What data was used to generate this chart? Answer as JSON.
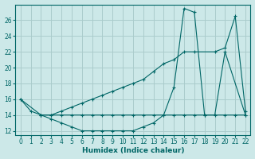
{
  "xlabel": "Humidex (Indice chaleur)",
  "bg_color": "#cce8e8",
  "grid_color": "#aacccc",
  "line_color": "#006666",
  "xlim": [
    -0.5,
    22.5
  ],
  "ylim": [
    11.5,
    28
  ],
  "yticks": [
    12,
    14,
    16,
    18,
    20,
    22,
    24,
    26
  ],
  "xticks": [
    0,
    1,
    2,
    3,
    4,
    5,
    6,
    7,
    8,
    9,
    10,
    11,
    12,
    13,
    14,
    15,
    16,
    17,
    18,
    19,
    20,
    21,
    22
  ],
  "line1_x": [
    0,
    2,
    3,
    4,
    5,
    6,
    7,
    8,
    9,
    10,
    11,
    12,
    13,
    14,
    15,
    16,
    17,
    18,
    19,
    20,
    22
  ],
  "line1_y": [
    16,
    14,
    14,
    14,
    14,
    14,
    14,
    14,
    14,
    14,
    14,
    14,
    14,
    14,
    14,
    14,
    14,
    14,
    14,
    22,
    14
  ],
  "line2_x": [
    0,
    1,
    2,
    3,
    4,
    5,
    6,
    7,
    8,
    9,
    10,
    11,
    12,
    13,
    14,
    15,
    16,
    17,
    18,
    20,
    21,
    22
  ],
  "line2_y": [
    16,
    14.5,
    14,
    13.5,
    13,
    12.5,
    12,
    12,
    12,
    12,
    12,
    12,
    12.5,
    13,
    14,
    17.5,
    27.5,
    27,
    14,
    14,
    14,
    14
  ],
  "line3_x": [
    2,
    3,
    4,
    5,
    6,
    7,
    8,
    9,
    10,
    11,
    12,
    13,
    14,
    15,
    16,
    17,
    19,
    20,
    21,
    22
  ],
  "line3_y": [
    14,
    14,
    14.5,
    15,
    15.5,
    16,
    16.5,
    17,
    17.5,
    18,
    18.5,
    19.5,
    20.5,
    21,
    22,
    22,
    22,
    22.5,
    26.5,
    14.5
  ]
}
